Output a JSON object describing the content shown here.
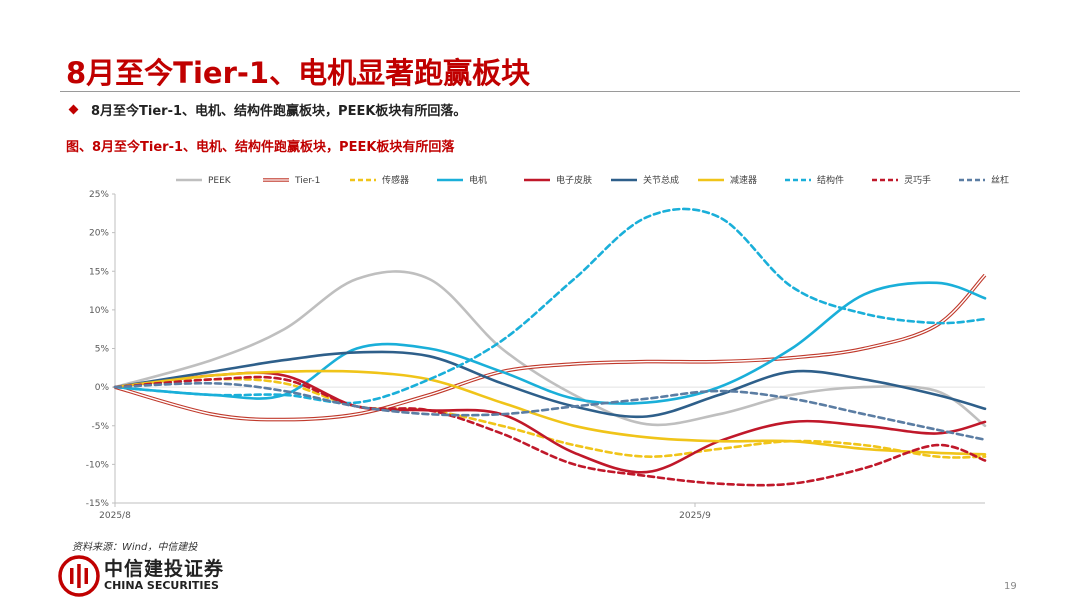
{
  "slide": {
    "title": "8月至今Tier-1、电机显著跑赢板块",
    "bullet": "8月至今Tier-1、电机、结构件跑赢板块，PEEK板块有所回落。",
    "figure_caption": "图、8月至今Tier-1、电机、结构件跑赢板块，PEEK板块有所回落",
    "source": "资料来源：Wind，中信建投",
    "logo_cn": "中信建投证券",
    "logo_en": "CHINA SECURITIES",
    "page_number": "19"
  },
  "chart_data": {
    "type": "line",
    "title": "",
    "xlabel": "",
    "ylabel": "",
    "ylim": [
      -15,
      25
    ],
    "y_ticks": [
      -15,
      -10,
      -5,
      0,
      5,
      10,
      15,
      20,
      25
    ],
    "y_tick_labels": [
      "-15%",
      "-10%",
      "-5%",
      "0%",
      "5%",
      "10%",
      "15%",
      "20%",
      "25%"
    ],
    "x_ticks": [
      0,
      24
    ],
    "x_tick_labels": [
      "2025/8",
      "2025/9"
    ],
    "grid": false,
    "zero_line": true,
    "legend_position": "top",
    "x": [
      0,
      4,
      7,
      10,
      13,
      16,
      19,
      22,
      25,
      28,
      31,
      34,
      36
    ],
    "series": [
      {
        "name": "PEEK",
        "color": "#bfbfbf",
        "dash": "solid",
        "double": false,
        "values": [
          0,
          3.5,
          7.5,
          14,
          14,
          5,
          -1,
          -4.8,
          -3.5,
          -1,
          0,
          -0.5,
          -5
        ]
      },
      {
        "name": "Tier-1",
        "color": "#c0392b",
        "dash": "solid",
        "double": true,
        "values": [
          0,
          -3.5,
          -4.2,
          -3.5,
          -1,
          2,
          3,
          3.3,
          3.3,
          3.8,
          5,
          8,
          14.5
        ]
      },
      {
        "name": "传感器",
        "color": "#f0c419",
        "dash": "dashed",
        "double": false,
        "values": [
          0,
          1,
          0.5,
          -2.5,
          -3,
          -5,
          -7.5,
          -9,
          -8,
          -7,
          -7.5,
          -9,
          -9
        ]
      },
      {
        "name": "电机",
        "color": "#1aafd9",
        "dash": "solid",
        "double": false,
        "values": [
          0,
          -1,
          -1,
          5,
          5,
          2,
          -1.5,
          -2,
          0,
          5,
          12,
          13.5,
          11.5
        ]
      },
      {
        "name": "电子皮肤",
        "color": "#c0182a",
        "dash": "solid",
        "double": false,
        "values": [
          0,
          1.5,
          1.5,
          -2.5,
          -3,
          -3.5,
          -8.5,
          -11,
          -7,
          -4.5,
          -5,
          -6,
          -4.5
        ]
      },
      {
        "name": "关节总成",
        "color": "#2e5f8a",
        "dash": "solid",
        "double": false,
        "values": [
          0,
          2,
          3.5,
          4.5,
          4,
          0.5,
          -2.5,
          -3.8,
          -1,
          2,
          1,
          -1,
          -2.8
        ]
      },
      {
        "name": "减速器",
        "color": "#f0c419",
        "dash": "solid",
        "double": false,
        "values": [
          0,
          1.5,
          2,
          2,
          1,
          -2,
          -5,
          -6.5,
          -7,
          -7,
          -8,
          -8.5,
          -8.7
        ]
      },
      {
        "name": "结构件",
        "color": "#1aafd9",
        "dash": "dashed",
        "double": false,
        "values": [
          0,
          -1,
          -1,
          -2,
          1,
          6,
          14,
          22,
          22,
          13,
          9.5,
          8.3,
          8.8
        ]
      },
      {
        "name": "灵巧手",
        "color": "#c0182a",
        "dash": "dashed",
        "double": false,
        "values": [
          0,
          1,
          1,
          -2.5,
          -3,
          -6,
          -10,
          -11.5,
          -12.5,
          -12.5,
          -10.5,
          -7.5,
          -9.5
        ]
      },
      {
        "name": "丝杠",
        "color": "#5b7da3",
        "dash": "dashed",
        "double": false,
        "values": [
          0,
          0.5,
          -0.5,
          -2.5,
          -3.5,
          -3.5,
          -2.5,
          -1.5,
          -0.5,
          -1.5,
          -3.5,
          -5.5,
          -6.8
        ]
      }
    ]
  }
}
